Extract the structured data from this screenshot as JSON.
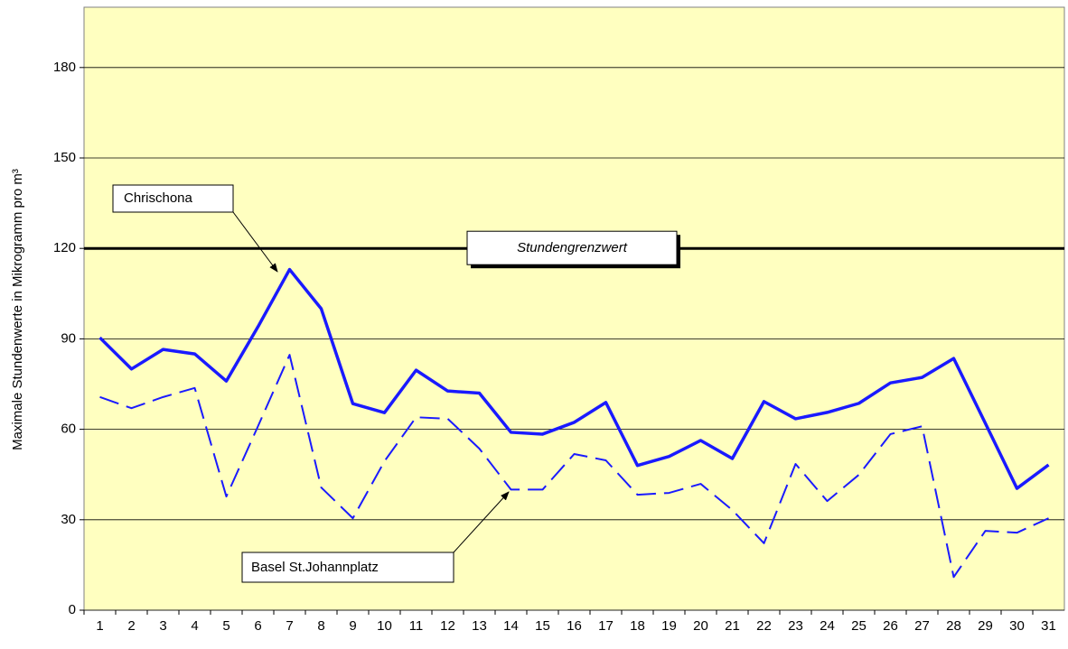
{
  "chart_data": {
    "type": "line",
    "y_label": "Maximale Stundenwerte in Mikrogramm pro m³",
    "categories": [
      "1",
      "2",
      "3",
      "4",
      "5",
      "6",
      "7",
      "8",
      "9",
      "10",
      "11",
      "12",
      "13",
      "14",
      "15",
      "16",
      "17",
      "18",
      "19",
      "20",
      "21",
      "22",
      "23",
      "24",
      "25",
      "26",
      "27",
      "28",
      "29",
      "30",
      "31"
    ],
    "series": [
      {
        "name": "Chrischona",
        "color": "#1a1aff",
        "dash": "solid",
        "values": [
          90.4,
          80,
          86.5,
          85,
          76,
          94,
          113,
          100,
          68.5,
          65.5,
          79.6,
          72.7,
          72,
          59,
          58.4,
          62.3,
          68.9,
          48,
          51,
          56.3,
          50.3,
          69.2,
          63.5,
          65.6,
          68.6,
          75.4,
          77.2,
          83.5,
          62,
          40.4,
          48.2
        ]
      },
      {
        "name": "Basel St.Johannplatz",
        "color": "#1a1aff",
        "dash": "dashed",
        "values": [
          70.7,
          67,
          70.7,
          73.7,
          37.7,
          61,
          84.7,
          40.7,
          30.5,
          49.4,
          64,
          63.5,
          53.6,
          40,
          40,
          51.8,
          49.7,
          38.3,
          38.9,
          41.9,
          33.2,
          22.2,
          48.5,
          36.2,
          44.9,
          58.4,
          61,
          11,
          26.3,
          25.7,
          30.5
        ]
      }
    ],
    "reference_line": {
      "value": 120,
      "label": "Stundengrenzwert"
    },
    "ylim": [
      0,
      200
    ],
    "yticks": [
      0,
      30,
      60,
      90,
      120,
      150,
      180
    ],
    "grid": true,
    "background": "#ffffc0"
  }
}
